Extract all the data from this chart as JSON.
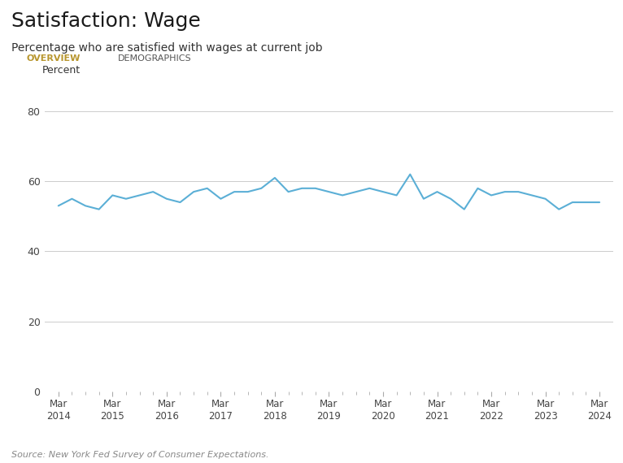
{
  "title": "Satisfaction: Wage",
  "subtitle": "Percentage who are satisfied with wages at current job",
  "tab1": "OVERVIEW",
  "tab2": "DEMOGRAPHICS",
  "ylabel": "Percent",
  "source": "Source: New York Fed Survey of Consumer Expectations.",
  "yticks": [
    0,
    20,
    40,
    60,
    80
  ],
  "ylim": [
    0,
    88
  ],
  "line_color": "#5bafd6",
  "line_width": 1.5,
  "background_color": "#ffffff",
  "plot_bg_color": "#ffffff",
  "x_labels": [
    "Mar\n2014",
    "Mar\n2015",
    "Mar\n2016",
    "Mar\n2017",
    "Mar\n2018",
    "Mar\n2019",
    "Mar\n2020",
    "Mar\n2021",
    "Mar\n2022",
    "Mar\n2023",
    "Mar\n2024"
  ],
  "x_positions": [
    0,
    12,
    24,
    36,
    48,
    60,
    72,
    84,
    96,
    108,
    120
  ],
  "data_x": [
    0,
    3,
    6,
    9,
    12,
    15,
    18,
    21,
    24,
    27,
    30,
    33,
    36,
    39,
    42,
    45,
    48,
    51,
    54,
    57,
    60,
    63,
    66,
    69,
    72,
    75,
    78,
    81,
    84,
    87,
    90,
    93,
    96,
    99,
    102,
    105,
    108,
    111,
    114,
    117,
    120
  ],
  "data_y": [
    53,
    55,
    53,
    52,
    56,
    55,
    56,
    57,
    55,
    54,
    57,
    58,
    55,
    57,
    57,
    58,
    61,
    57,
    58,
    58,
    57,
    56,
    57,
    58,
    57,
    56,
    62,
    55,
    57,
    55,
    52,
    58,
    56,
    57,
    57,
    56,
    55,
    52,
    54,
    54,
    54
  ],
  "grid_color": "#cccccc",
  "tick_color": "#aaaaaa",
  "title_fontsize": 18,
  "subtitle_fontsize": 10,
  "tab_fontsize": 8,
  "axis_fontsize": 9,
  "source_fontsize": 8,
  "tab_bg_color": "#e8e8e8",
  "tab_active_color": "#b8962e",
  "tab_inactive_color": "#555555"
}
